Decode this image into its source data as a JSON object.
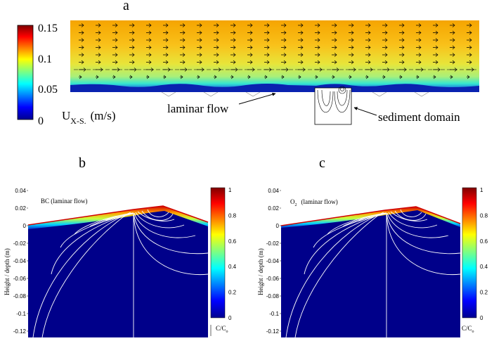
{
  "panel_a": {
    "letter": "a",
    "colorbar_ticks": [
      "0.15",
      "0.1",
      "0.05",
      "0"
    ],
    "velocity_label_main": "U",
    "velocity_label_sub": "X-S.",
    "velocity_label_unit": "(m/s)",
    "annotation_laminar": "laminar flow",
    "annotation_sediment": "sediment domain"
  },
  "panel_b": {
    "letter": "b",
    "species_label": "BC  (laminar flow)",
    "y_axis_label": "Height / depth (m)",
    "y_ticks": [
      "0.04",
      "0.02",
      "0",
      "-0.02",
      "-0.04",
      "-0.06",
      "-0.08",
      "-0.1",
      "-0.12"
    ],
    "colorbar_ticks": [
      "1",
      "0.8",
      "0.6",
      "0.4",
      "0.2",
      "0"
    ],
    "colorbar_label": "C/C",
    "colorbar_label_sub": "o"
  },
  "panel_c": {
    "letter": "c",
    "species_label_main": "O",
    "species_label_sub": "2",
    "species_label_rest": "(laminar flow)",
    "y_axis_label": "Height / depth (m)",
    "y_ticks": [
      "0.04",
      "0.02",
      "0",
      "-0.02",
      "-0.04",
      "-0.06",
      "-0.08",
      "-0.1",
      "-0.12"
    ],
    "colorbar_ticks": [
      "1",
      "0.8",
      "0.6",
      "0.4",
      "0.2",
      "0"
    ],
    "colorbar_label": "C/C",
    "colorbar_label_sub": "o"
  }
}
